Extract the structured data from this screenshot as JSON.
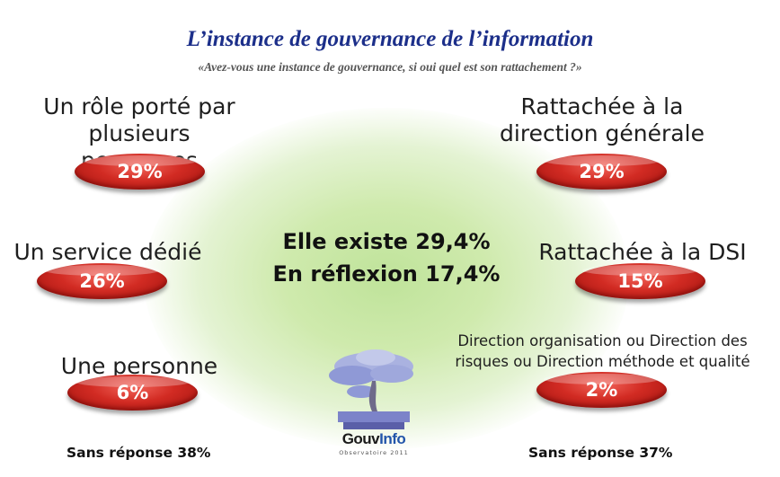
{
  "header": {
    "title": "L’instance de gouvernance de l’information",
    "subtitle": "«Avez-vous une instance de gouvernance, si oui quel est son rattachement ?»"
  },
  "center": {
    "line1": "Elle existe 29,4%",
    "line2": "En réflexion 17,4%"
  },
  "footer": {
    "left": "Sans réponse 38%",
    "right": "Sans réponse 37%"
  },
  "logo": {
    "name_part1": "Gouv",
    "name_part2": "Info",
    "tagline": "Observatoire 2011"
  },
  "chart_data": [
    {
      "type": "table",
      "group": "left",
      "categories": [
        "Un rôle porté par plusieurs personnes",
        "Un service dédié",
        "Une personne dédiée"
      ],
      "values": [
        29,
        26,
        6
      ],
      "value_labels": [
        "29%",
        "26%",
        "6%"
      ],
      "unanswered": "Sans réponse 38%"
    },
    {
      "type": "table",
      "group": "right",
      "categories": [
        "Rattachée à la direction générale",
        "Rattachée à la DSI",
        "Direction organisation ou Direction des risques ou Direction méthode et qualité"
      ],
      "values": [
        29,
        15,
        2
      ],
      "value_labels": [
        "29%",
        "15%",
        "2%"
      ],
      "unanswered": "Sans réponse 37%"
    }
  ],
  "labels": {
    "left1_line1": "Un rôle porté par",
    "left1_line2": "plusieurs personnes",
    "left2": "Un service dédié",
    "left3": "Une personne dédiée",
    "right1_line1": "Rattachée à la",
    "right1_line2": "direction générale",
    "right2": "Rattachée à la DSI",
    "right3_line1": "Direction organisation ou Direction des",
    "right3_line2": "risques ou Direction méthode et qualité"
  },
  "colors": {
    "title": "#1c2f8a",
    "pill": "#d22b23",
    "glow": "#bfe39a"
  }
}
